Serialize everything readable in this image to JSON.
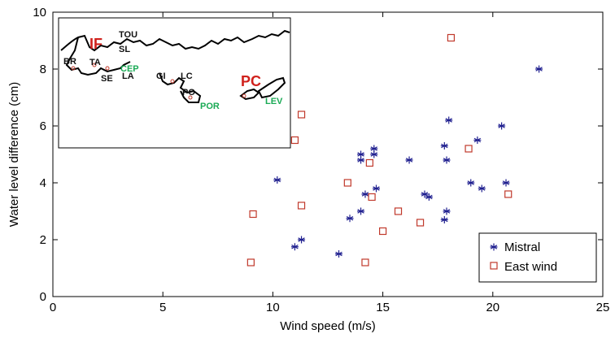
{
  "chart_data": {
    "type": "scatter",
    "xlabel": "Wind speed (m/s)",
    "ylabel": "Water level difference (cm)",
    "xlim": [
      0,
      25
    ],
    "ylim": [
      0,
      10
    ],
    "xticks": [
      "0",
      "5",
      "10",
      "15",
      "20",
      "25"
    ],
    "yticks": [
      "0",
      "2",
      "4",
      "6",
      "8",
      "10"
    ],
    "grid": false,
    "legend_position": "bottom-right",
    "series": [
      {
        "name": "Mistral",
        "marker": "asterisk",
        "color": "#1f1f8f",
        "points": [
          [
            10.2,
            4.1
          ],
          [
            11.0,
            1.75
          ],
          [
            11.3,
            2.0
          ],
          [
            13.0,
            1.5
          ],
          [
            13.5,
            2.75
          ],
          [
            14.0,
            3.0
          ],
          [
            14.0,
            4.8
          ],
          [
            14.0,
            5.0
          ],
          [
            14.2,
            3.6
          ],
          [
            14.6,
            5.2
          ],
          [
            14.6,
            5.0
          ],
          [
            14.7,
            3.8
          ],
          [
            16.2,
            4.8
          ],
          [
            16.9,
            3.6
          ],
          [
            17.1,
            3.5
          ],
          [
            17.8,
            2.7
          ],
          [
            17.8,
            5.3
          ],
          [
            17.9,
            3.0
          ],
          [
            17.9,
            4.8
          ],
          [
            18.0,
            6.2
          ],
          [
            19.0,
            4.0
          ],
          [
            19.3,
            5.5
          ],
          [
            19.5,
            3.8
          ],
          [
            20.4,
            6.0
          ],
          [
            20.6,
            4.0
          ],
          [
            22.1,
            8.0
          ]
        ]
      },
      {
        "name": "East wind",
        "marker": "square",
        "color": "#c0392b",
        "points": [
          [
            9.0,
            1.2
          ],
          [
            9.1,
            2.9
          ],
          [
            11.0,
            5.5
          ],
          [
            11.3,
            6.4
          ],
          [
            11.3,
            3.2
          ],
          [
            13.4,
            4.0
          ],
          [
            14.2,
            1.2
          ],
          [
            14.4,
            4.7
          ],
          [
            14.5,
            3.5
          ],
          [
            15.0,
            2.3
          ],
          [
            15.7,
            3.0
          ],
          [
            16.7,
            2.6
          ],
          [
            18.1,
            9.1
          ],
          [
            18.9,
            5.2
          ],
          [
            20.7,
            3.6
          ]
        ]
      }
    ]
  },
  "inset_map": {
    "labels_dark": [
      "TOU",
      "SL",
      "BR",
      "TA",
      "SE",
      "LA",
      "GI",
      "LC",
      "PO"
    ],
    "labels_green": [
      "CEP",
      "POR",
      "LEV"
    ],
    "labels_red": [
      "IF",
      "PC"
    ],
    "color_dark": "#111111",
    "color_green": "#1aaa55",
    "color_red": "#d0211c"
  }
}
